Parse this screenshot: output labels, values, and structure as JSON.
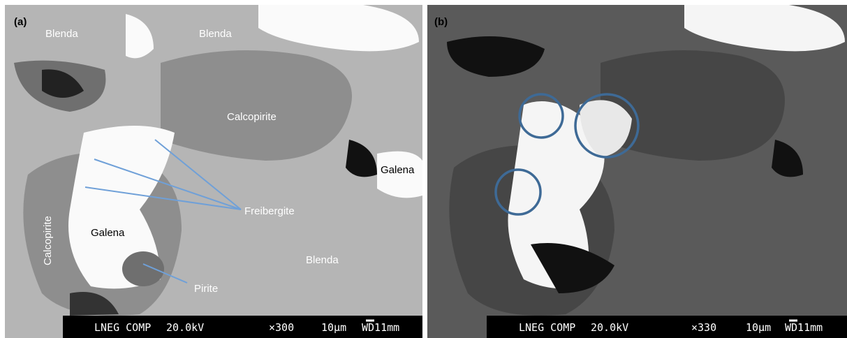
{
  "panels": [
    {
      "label": "(a)",
      "annotations": [
        "Blenda",
        "Blenda",
        "Calcopirite",
        "Galena",
        "Freibergite",
        "Calcopirite",
        "Galena",
        "Blenda",
        "Pirite"
      ],
      "databar": [
        "LNEG COMP",
        "20.0kV",
        "×300",
        "10μm",
        "WD11mm"
      ]
    },
    {
      "label": "(b)",
      "databar": [
        "LNEG COMP",
        "20.0kV",
        "×330",
        "10μm",
        "WD11mm"
      ]
    }
  ]
}
